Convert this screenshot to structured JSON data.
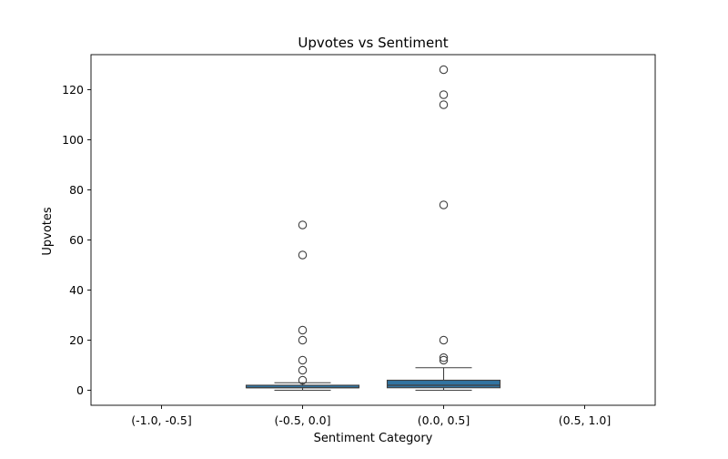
{
  "chart_data": {
    "type": "box",
    "title": "Upvotes vs Sentiment",
    "xlabel": "Sentiment Category",
    "ylabel": "Upvotes",
    "categories": [
      "(-1.0, -0.5]",
      "(-0.5, 0.0]",
      "(0.0, 0.5]",
      "(0.5, 1.0]"
    ],
    "ylim": [
      -6,
      134
    ],
    "yticks": [
      0,
      20,
      40,
      60,
      80,
      100,
      120
    ],
    "grid": false,
    "colors": {
      "box_fill": "#3274a1",
      "line": "#3f3f3f"
    },
    "boxes": [
      null,
      {
        "min": 0,
        "q1": 1,
        "median": 1,
        "q3": 2,
        "max": 3,
        "outliers": [
          4,
          8,
          12,
          20,
          24,
          54,
          66
        ]
      },
      {
        "min": 0,
        "q1": 1,
        "median": 2,
        "q3": 4,
        "max": 9,
        "outliers": [
          12,
          13,
          20,
          74,
          114,
          118,
          128
        ]
      },
      null
    ]
  }
}
